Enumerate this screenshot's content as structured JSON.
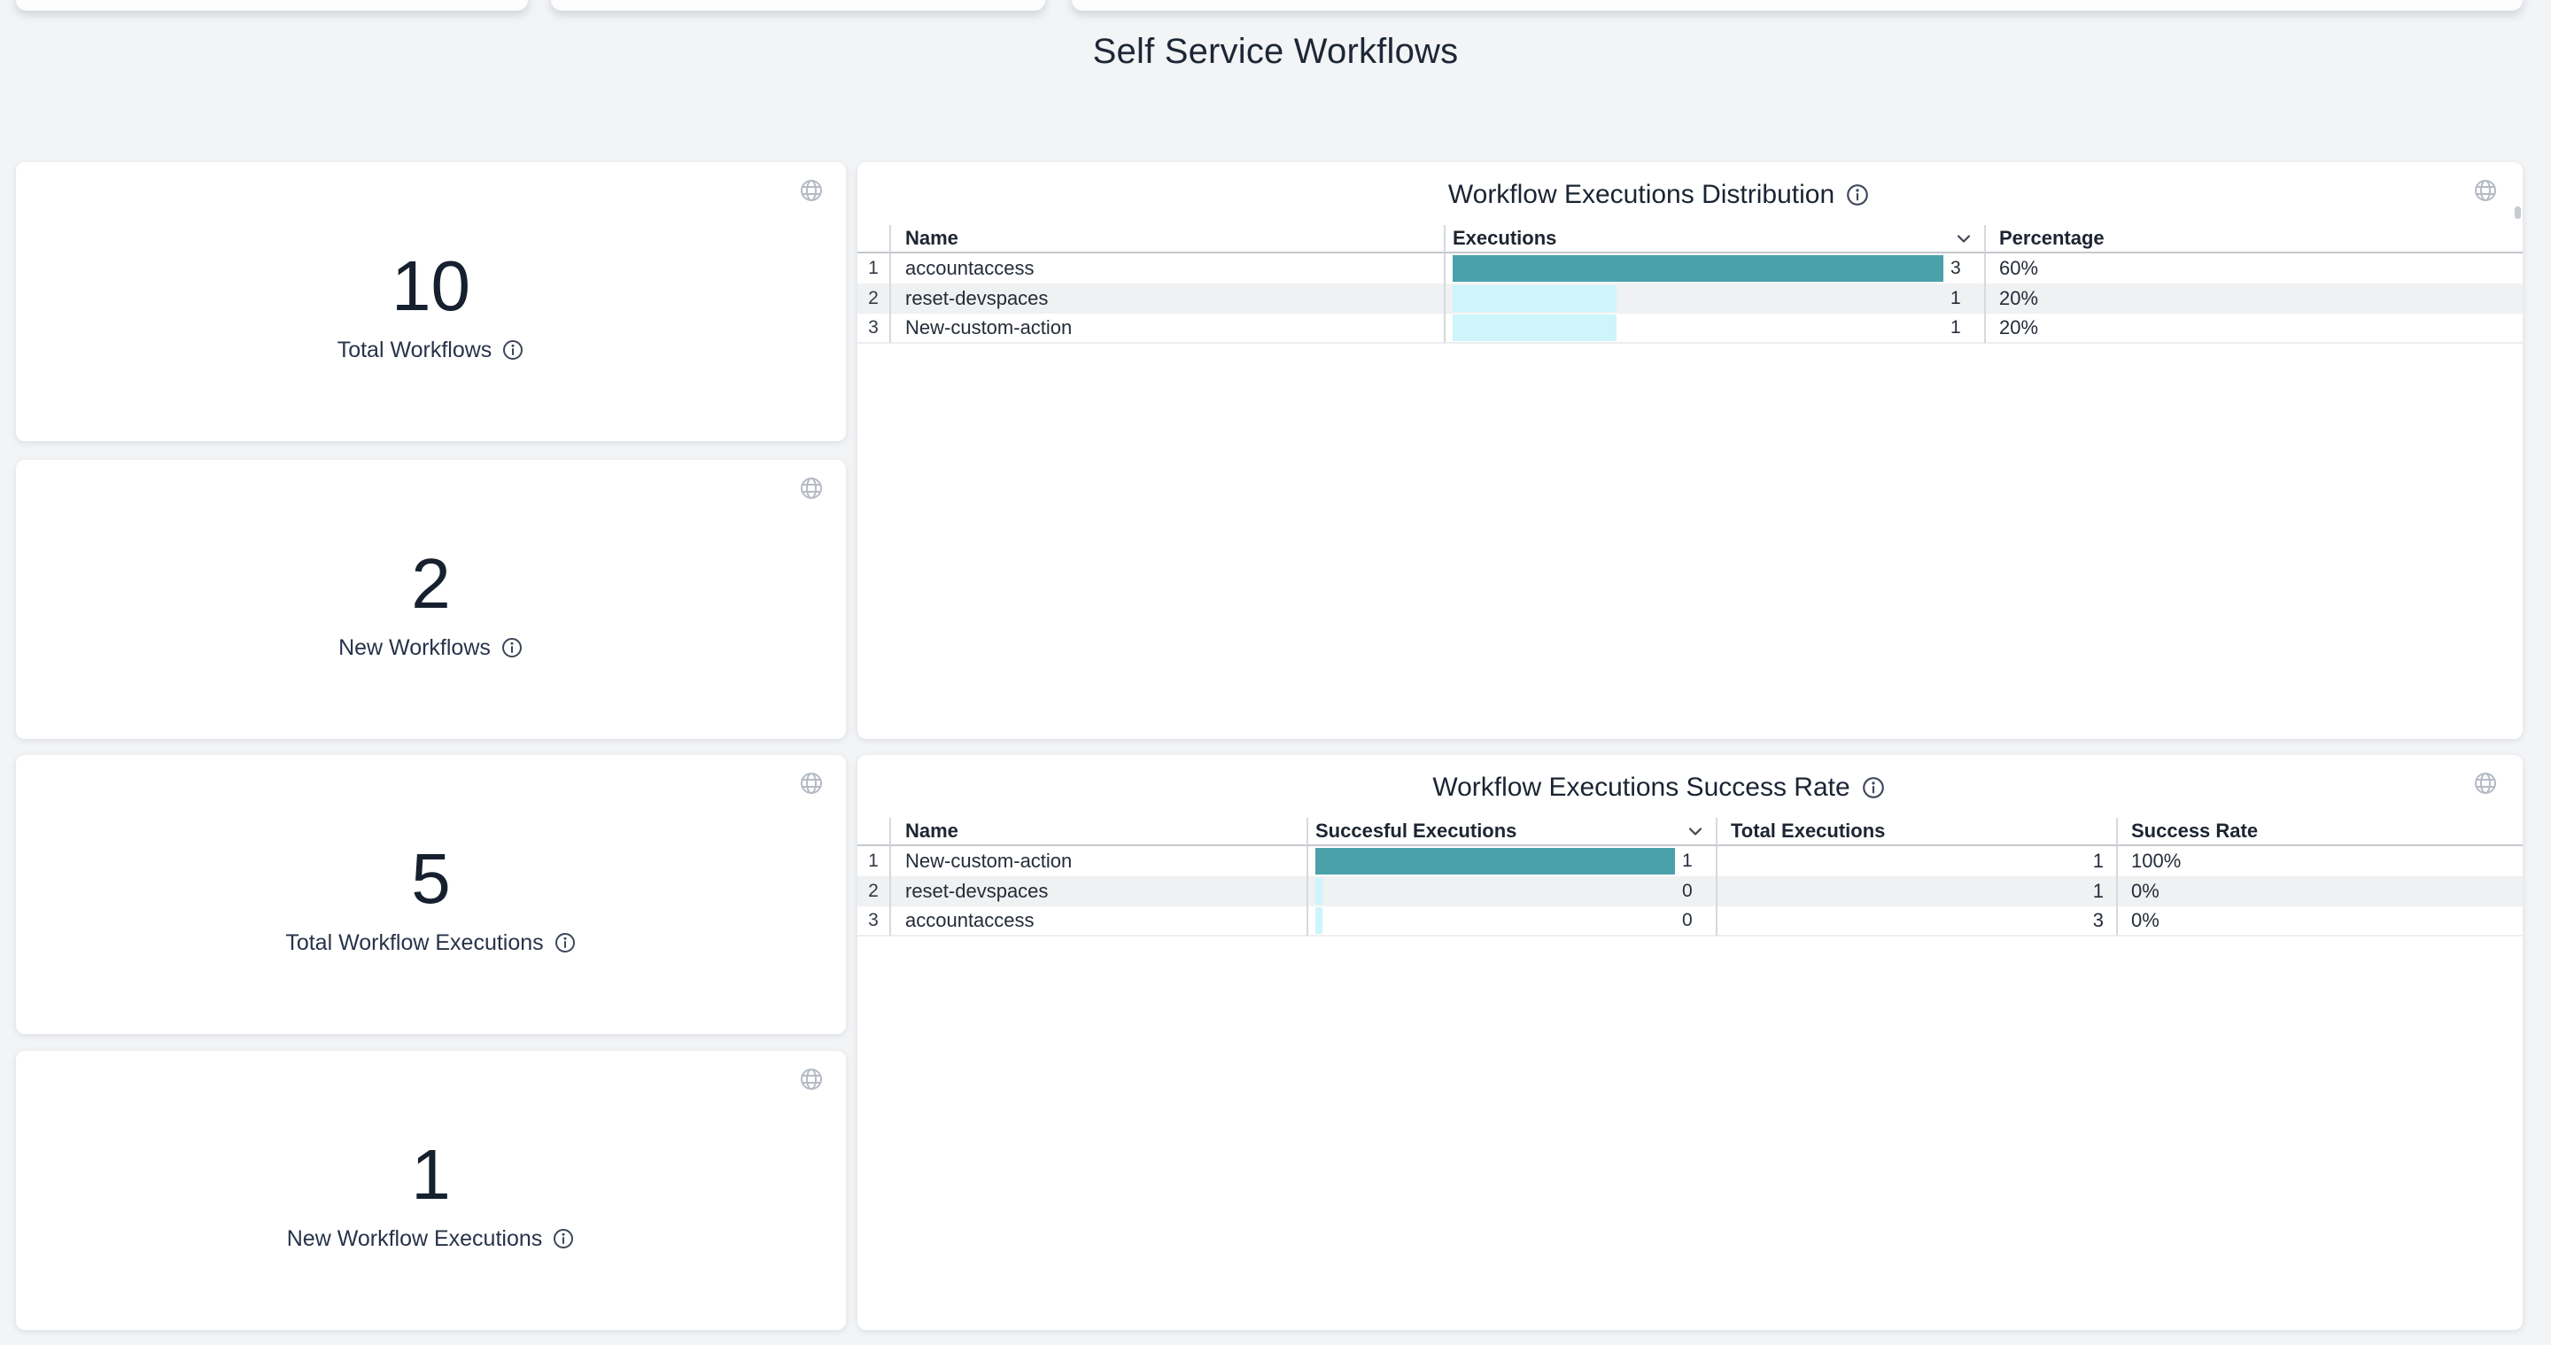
{
  "page": {
    "title": "Self Service Workflows"
  },
  "colors": {
    "page_bg": "#F2F4F6",
    "title_text": "#1E2736",
    "bar_primary": "#4AA1A9",
    "bar_secondary": "#CDF5FB"
  },
  "stat_cards": [
    {
      "value": "10",
      "label": "Total Workflows"
    },
    {
      "value": "2",
      "label": "New Workflows"
    },
    {
      "value": "5",
      "label": "Total Workflow Executions"
    },
    {
      "value": "1",
      "label": "New Workflow Executions"
    }
  ],
  "distribution": {
    "title": "Workflow Executions Distribution",
    "headers": {
      "name": "Name",
      "executions": "Executions",
      "percentage": "Percentage"
    },
    "max_bar_value": 3,
    "rows": [
      {
        "num": "1",
        "name": "accountaccess",
        "executions": 3,
        "percentage": "60%"
      },
      {
        "num": "2",
        "name": "reset-devspaces",
        "executions": 1,
        "percentage": "20%"
      },
      {
        "num": "3",
        "name": "New-custom-action",
        "executions": 1,
        "percentage": "20%"
      }
    ]
  },
  "success_rate": {
    "title": "Workflow Executions Success Rate",
    "headers": {
      "name": "Name",
      "successful": "Succesful Executions",
      "total": "Total Executions",
      "rate": "Success Rate"
    },
    "max_bar_value": 1,
    "rows": [
      {
        "num": "1",
        "name": "New-custom-action",
        "successful": 1,
        "total": "1",
        "rate": "100%"
      },
      {
        "num": "2",
        "name": "reset-devspaces",
        "successful": 0,
        "total": "1",
        "rate": "0%"
      },
      {
        "num": "3",
        "name": "accountaccess",
        "successful": 0,
        "total": "3",
        "rate": "0%"
      }
    ]
  }
}
